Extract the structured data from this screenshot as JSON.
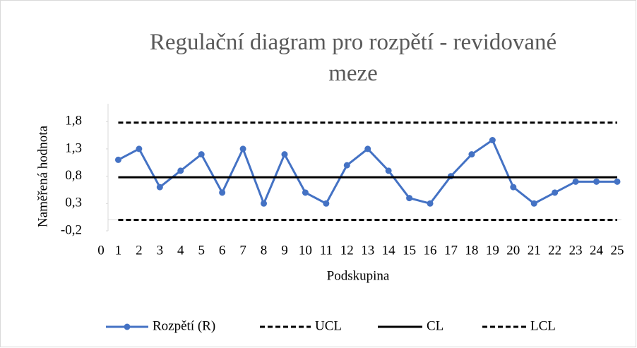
{
  "chart_data": {
    "type": "line",
    "title": "Regulační diagram pro rozpětí - revidované meze",
    "x_label": "Podskupina",
    "y_label": "Naměřená hodnota",
    "x": [
      1,
      2,
      3,
      4,
      5,
      6,
      7,
      8,
      9,
      10,
      11,
      12,
      13,
      14,
      15,
      16,
      17,
      18,
      19,
      20,
      21,
      22,
      23,
      24,
      25
    ],
    "series": [
      {
        "name": "Rozpětí (R)",
        "color": "#4472c4",
        "style": "solid",
        "markers": true,
        "values": [
          1.1,
          1.3,
          0.6,
          0.9,
          1.2,
          0.5,
          1.3,
          0.3,
          1.2,
          0.5,
          0.3,
          1.0,
          1.3,
          0.9,
          0.4,
          0.3,
          0.8,
          1.2,
          1.46,
          0.6,
          0.3,
          0.5,
          0.7,
          0.7,
          0.7
        ]
      },
      {
        "name": "UCL",
        "color": "#000000",
        "style": "dashed",
        "markers": false,
        "values": [
          1.78,
          1.78,
          1.78,
          1.78,
          1.78,
          1.78,
          1.78,
          1.78,
          1.78,
          1.78,
          1.78,
          1.78,
          1.78,
          1.78,
          1.78,
          1.78,
          1.78,
          1.78,
          1.78,
          1.78,
          1.78,
          1.78,
          1.78,
          1.78,
          1.78
        ]
      },
      {
        "name": "CL",
        "color": "#000000",
        "style": "solid",
        "markers": false,
        "values": [
          0.78,
          0.78,
          0.78,
          0.78,
          0.78,
          0.78,
          0.78,
          0.78,
          0.78,
          0.78,
          0.78,
          0.78,
          0.78,
          0.78,
          0.78,
          0.78,
          0.78,
          0.78,
          0.78,
          0.78,
          0.78,
          0.78,
          0.78,
          0.78,
          0.78
        ]
      },
      {
        "name": "LCL",
        "color": "#000000",
        "style": "dashed",
        "markers": false,
        "values": [
          0,
          0,
          0,
          0,
          0,
          0,
          0,
          0,
          0,
          0,
          0,
          0,
          0,
          0,
          0,
          0,
          0,
          0,
          0,
          0,
          0,
          0,
          0,
          0,
          0
        ]
      }
    ],
    "xlim": [
      0,
      25
    ],
    "xticks": [
      0,
      1,
      2,
      3,
      4,
      5,
      6,
      7,
      8,
      9,
      10,
      11,
      12,
      13,
      14,
      15,
      16,
      17,
      18,
      19,
      20,
      21,
      22,
      23,
      24,
      25
    ],
    "ylim": [
      -0.2,
      2.1
    ],
    "yticks": [
      {
        "value": -0.2,
        "label": "-0,2"
      },
      {
        "value": 0.3,
        "label": "0,3"
      },
      {
        "value": 0.8,
        "label": "0,8"
      },
      {
        "value": 1.3,
        "label": "1,3"
      },
      {
        "value": 1.8,
        "label": "1,8"
      }
    ],
    "legend": "bottom"
  }
}
